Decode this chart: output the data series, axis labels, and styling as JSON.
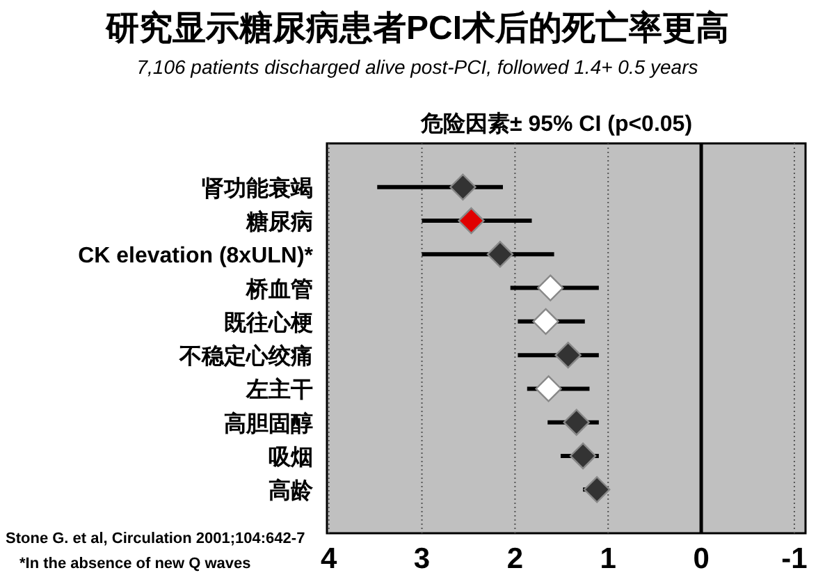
{
  "chart_data": {
    "type": "scatter",
    "title": "研究显示糖尿病患者PCI术后的死亡率更高",
    "subtitle": "7,106 patients discharged alive post-PCI, followed 1.4+ 0.5 years",
    "xlabel": "危险因素± 95% CI (p<0.05)",
    "categories": [
      "肾功能衰竭",
      "糖尿病",
      "CK elevation (8xULN)*",
      "桥血管",
      "既往心梗",
      "不稳定心绞痛",
      "左主干",
      "高胆固醇",
      "吸烟",
      "高龄"
    ],
    "values": [
      2.56,
      2.47,
      2.16,
      1.62,
      1.67,
      1.43,
      1.64,
      1.34,
      1.27,
      1.12
    ],
    "errors": [
      [
        2.13,
        3.48
      ],
      [
        1.82,
        3.0
      ],
      [
        1.58,
        3.0
      ],
      [
        1.1,
        2.05
      ],
      [
        1.25,
        1.97
      ],
      [
        1.1,
        1.97
      ],
      [
        1.2,
        1.87
      ],
      [
        1.1,
        1.65
      ],
      [
        1.1,
        1.51
      ],
      [
        1.1,
        1.27
      ]
    ],
    "colors": [
      "#333333",
      "#e00000",
      "#333333",
      "#ffffff",
      "#ffffff",
      "#333333",
      "#ffffff",
      "#333333",
      "#333333",
      "#333333"
    ],
    "marker": "diamond",
    "orientation": "horizontal",
    "xlim": [
      4.02,
      -1.12
    ],
    "xticks": [
      4,
      3,
      2,
      1,
      0,
      -1
    ],
    "grid": "x",
    "ref_lines": [
      {
        "axis": "x",
        "value": 0,
        "color": "#000000"
      }
    ],
    "annotations": [
      "Stone G. et al, Circulation 2001;104:642-7",
      "*In the absence of new Q waves"
    ]
  }
}
